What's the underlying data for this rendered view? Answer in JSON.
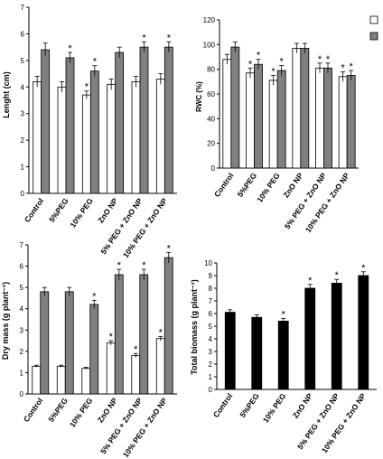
{
  "colors": {
    "white_bar": "#ffffff",
    "gray_bar": "#808080",
    "black_bar": "#000000",
    "axis": "#000000"
  },
  "chart_data": [
    {
      "type": "bar",
      "ylabel": "Lenght (cm)",
      "ylim": [
        0,
        7
      ],
      "yticks": [
        "0",
        "1",
        "2",
        "3",
        "4",
        "5",
        "6",
        "7"
      ],
      "categories": [
        "Control",
        "5%PEG",
        "10% PEG",
        "ZnO NP",
        "5% PEG + ZnO NP",
        "10% PEG + ZnO NP"
      ],
      "series": [
        {
          "color": "white",
          "values": [
            4.2,
            4.0,
            3.7,
            4.1,
            4.2,
            4.3
          ],
          "errors": [
            0.2,
            0.2,
            0.15,
            0.2,
            0.2,
            0.2
          ],
          "sig": [
            "",
            "",
            "*",
            "",
            "",
            ""
          ]
        },
        {
          "color": "gray",
          "values": [
            5.4,
            5.1,
            4.6,
            5.3,
            5.5,
            5.5
          ],
          "errors": [
            0.25,
            0.2,
            0.2,
            0.2,
            0.2,
            0.2
          ],
          "sig": [
            "",
            "*",
            "*",
            "",
            "*",
            "*"
          ]
        }
      ],
      "legend": "top-right"
    },
    {
      "type": "bar",
      "ylabel": "RWC (%)",
      "ylim": [
        0,
        120
      ],
      "yticks": [
        "0",
        "20",
        "40",
        "60",
        "80",
        "100",
        "120"
      ],
      "categories": [
        "Control",
        "5%PEG",
        "10% PEG",
        "ZnO NP",
        "5% PEG + ZnO NP",
        "10% PEG + ZnO NP"
      ],
      "series": [
        {
          "color": "white",
          "values": [
            88,
            77,
            71,
            97,
            81,
            74
          ],
          "errors": [
            4,
            4,
            4,
            4,
            4,
            4
          ],
          "sig": [
            "",
            "*",
            "*",
            "",
            "*",
            "*"
          ]
        },
        {
          "color": "gray",
          "values": [
            98,
            84,
            79,
            97,
            81,
            75
          ],
          "errors": [
            4,
            4,
            4,
            4,
            4,
            4
          ],
          "sig": [
            "",
            "*",
            "*",
            "",
            "*",
            "*"
          ]
        }
      ]
    },
    {
      "type": "bar",
      "ylabel": "Dry mass (g plant⁻¹)",
      "ylim": [
        0,
        7
      ],
      "yticks": [
        "0",
        "1",
        "2",
        "3",
        "4",
        "5",
        "6",
        "7"
      ],
      "categories": [
        "Control",
        "5%PEG",
        "10% PEG",
        "ZnO NP",
        "5% PEG + ZnO NP",
        "10% PEG + ZnO NP"
      ],
      "series": [
        {
          "color": "white",
          "values": [
            1.3,
            1.3,
            1.2,
            2.4,
            1.8,
            2.6
          ],
          "errors": [
            0.05,
            0.05,
            0.05,
            0.1,
            0.1,
            0.1
          ],
          "sig": [
            "",
            "",
            "",
            "*",
            "*",
            "*"
          ]
        },
        {
          "color": "gray",
          "values": [
            4.8,
            4.8,
            4.2,
            5.6,
            5.6,
            6.4
          ],
          "errors": [
            0.2,
            0.2,
            0.2,
            0.25,
            0.25,
            0.25
          ],
          "sig": [
            "",
            "",
            "*",
            "*",
            "*",
            "*"
          ]
        }
      ]
    },
    {
      "type": "bar",
      "ylabel": "Total biomass (g plant⁻¹)",
      "ylim": [
        0,
        10
      ],
      "yticks": [
        "0",
        "1",
        "2",
        "3",
        "4",
        "5",
        "6",
        "7",
        "8",
        "9",
        "10"
      ],
      "categories": [
        "Control",
        "5%PEG",
        "10% PEG",
        "ZnO NP",
        "5% PEG + ZnO NP",
        "10% PEG + ZnO NP"
      ],
      "series": [
        {
          "color": "black",
          "values": [
            6.1,
            5.7,
            5.4,
            8.0,
            8.4,
            9.0
          ],
          "errors": [
            0.2,
            0.2,
            0.2,
            0.3,
            0.3,
            0.3
          ],
          "sig": [
            "",
            "",
            "*",
            "*",
            "*",
            "*"
          ]
        }
      ]
    }
  ]
}
